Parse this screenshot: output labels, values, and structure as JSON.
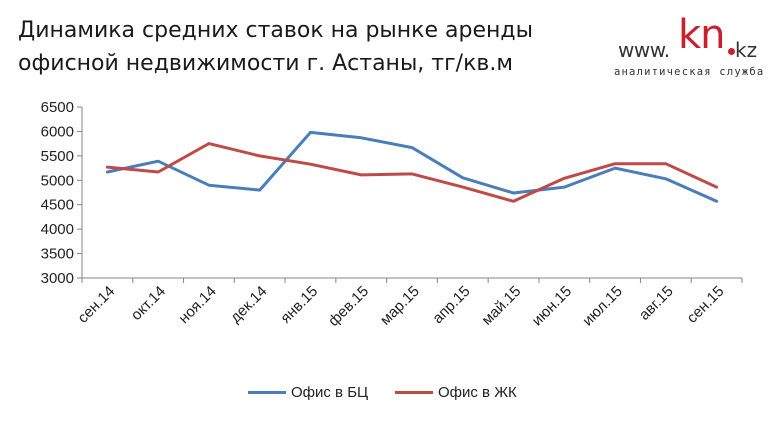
{
  "logo": {
    "www": "www.",
    "kn": "kn",
    "kz": "kz",
    "subtitle": "аналитическая служба"
  },
  "colors": {
    "bc": "#4a7ebb",
    "zhk": "#be4b48",
    "axis": "#868686"
  },
  "chart_data": {
    "type": "line",
    "title_line1": "Динамика средних ставок на рынке аренды",
    "title_line2": "офисной недвижимости г. Астаны, тг/кв.м",
    "categories": [
      "сен.14",
      "окт.14",
      "ноя.14",
      "дек.14",
      "янв.15",
      "фев.15",
      "мар.15",
      "апр.15",
      "май.15",
      "июн.15",
      "июл.15",
      "авг.15",
      "сен.15"
    ],
    "series": [
      {
        "name": "Офис в БЦ",
        "color": "#4a7ebb",
        "values": [
          5170,
          5390,
          4900,
          4800,
          5980,
          5870,
          5670,
          5050,
          4740,
          4860,
          5250,
          5030,
          4570
        ]
      },
      {
        "name": "Офис в ЖК",
        "color": "#be4b48",
        "values": [
          5270,
          5170,
          5750,
          5500,
          5330,
          5110,
          5130,
          4860,
          4570,
          5040,
          5340,
          5340,
          4860
        ]
      }
    ],
    "ylim": [
      3000,
      6500
    ],
    "yticks": [
      3000,
      3500,
      4000,
      4500,
      5000,
      5500,
      6000,
      6500
    ],
    "grid": false,
    "legend_position": "bottom"
  }
}
